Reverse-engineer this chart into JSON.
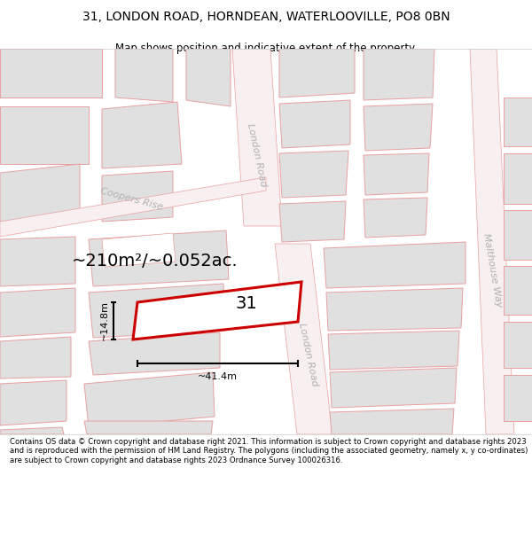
{
  "title_line1": "31, LONDON ROAD, HORNDEAN, WATERLOOVILLE, PO8 0BN",
  "title_line2": "Map shows position and indicative extent of the property.",
  "footer_text": "Contains OS data © Crown copyright and database right 2021. This information is subject to Crown copyright and database rights 2023 and is reproduced with the permission of HM Land Registry. The polygons (including the associated geometry, namely x, y co-ordinates) are subject to Crown copyright and database rights 2023 Ordnance Survey 100026316.",
  "bg_color": "#ffffff",
  "map_bg": "#ffffff",
  "street_color": "#e8a0a0",
  "building_fill": "#e0e0e0",
  "building_edge": "#e8a0a0",
  "highlight_color": "#cc0000",
  "area_text": "~210m²/~0.052ac.",
  "width_text": "~41.4m",
  "height_text": "~14.8m",
  "number_text": "31",
  "street_label_london_road_upper": "London Road",
  "street_label_london_road_lower": "London Road",
  "street_label_coopers": "Coopers Rise",
  "street_label_malthouse": "Malthouse Way"
}
